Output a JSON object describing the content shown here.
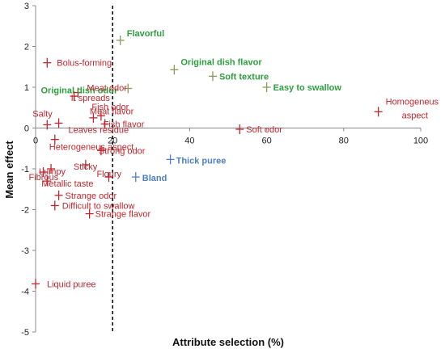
{
  "chart_data": {
    "type": "scatter",
    "xlabel": "Attribute selection (%)",
    "ylabel": "Mean effect",
    "xlim": [
      0,
      100
    ],
    "ylim": [
      -5,
      3
    ],
    "xticks": [
      "0",
      "20",
      "40",
      "60",
      "80",
      "100"
    ],
    "yticks": [
      "-5",
      "-4",
      "-3",
      "-2",
      "-1",
      "0",
      "1",
      "2",
      "3"
    ],
    "grid": false,
    "reference_line": {
      "x": 20,
      "style": "dashed"
    },
    "colors": {
      "negative": "#c0272d",
      "positive": "#2e9e3e",
      "neutral": "#4f7fbf",
      "marker_positive": "#8a9a5b"
    },
    "points": [
      {
        "label": "Flavorful",
        "x": 22,
        "y": 2.15,
        "group": "positive"
      },
      {
        "label": "Original dish flavor",
        "x": 36,
        "y": 1.43,
        "group": "positive"
      },
      {
        "label": "Soft texture",
        "x": 46,
        "y": 1.27,
        "group": "positive"
      },
      {
        "label": "Easy to swallow",
        "x": 60,
        "y": 1.0,
        "group": "positive"
      },
      {
        "label": "Original dish odor",
        "x": 24,
        "y": 0.97,
        "group": "positive"
      },
      {
        "label": "Homogeneus aspect",
        "x": 89,
        "y": 0.4,
        "group": "negative"
      },
      {
        "label": "Soft odor",
        "x": 53,
        "y": -0.03,
        "group": "negative"
      },
      {
        "label": "Bolus-forming",
        "x": 3,
        "y": 1.6,
        "group": "negative"
      },
      {
        "label": "Meat odor",
        "x": 11,
        "y": 0.87,
        "group": "negative"
      },
      {
        "label": "It spreads",
        "x": 10,
        "y": 0.78,
        "group": "negative"
      },
      {
        "label": "Meat flavor",
        "x": 17,
        "y": 0.3,
        "group": "negative"
      },
      {
        "label": "Fish odor",
        "x": 15,
        "y": 0.25,
        "group": "negative"
      },
      {
        "label": "Salty",
        "x": 3,
        "y": 0.08,
        "group": "negative"
      },
      {
        "label": "Leaves residue",
        "x": 6,
        "y": 0.12,
        "group": "negative"
      },
      {
        "label": "Fish flavor",
        "x": 18,
        "y": 0.1,
        "group": "negative"
      },
      {
        "label": "Heterogeneus aspect",
        "x": 5,
        "y": -0.28,
        "group": "negative"
      },
      {
        "label": "Strong odor",
        "x": 17,
        "y": -0.55,
        "group": "negative"
      },
      {
        "label": "Sticky",
        "x": 13,
        "y": -0.9,
        "group": "negative"
      },
      {
        "label": "Lumpy",
        "x": 4,
        "y": -1.0,
        "group": "negative"
      },
      {
        "label": "Fibrous",
        "x": 2,
        "y": -1.08,
        "group": "negative"
      },
      {
        "label": "Metallic taste",
        "x": 3,
        "y": -1.3,
        "group": "negative"
      },
      {
        "label": "Floury",
        "x": 19,
        "y": -1.2,
        "group": "negative"
      },
      {
        "label": "Bland",
        "x": 26,
        "y": -1.2,
        "group": "neutral"
      },
      {
        "label": "Thick puree",
        "x": 35,
        "y": -0.77,
        "group": "neutral"
      },
      {
        "label": "Strange odor",
        "x": 6,
        "y": -1.65,
        "group": "negative"
      },
      {
        "label": "Difficult to swallow",
        "x": 5,
        "y": -1.9,
        "group": "negative"
      },
      {
        "label": "Strange flavor",
        "x": 14,
        "y": -2.1,
        "group": "negative"
      },
      {
        "label": "Liquid puree",
        "x": 0,
        "y": -3.82,
        "group": "negative"
      }
    ]
  }
}
